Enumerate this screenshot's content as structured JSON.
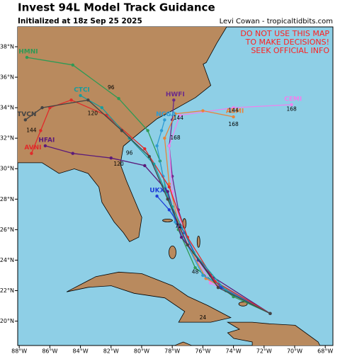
{
  "chart_data": {
    "type": "track-map",
    "title": "Invest 94L Model Track Guidance",
    "subtitle": "Initialized at 18z Sep 25 2025",
    "credit": "Levi Cowan - tropicaltidbits.com",
    "warning": [
      "DO NOT USE THIS MAP",
      "TO MAKE DECISIONS!",
      "SEEK OFFICIAL INFO"
    ],
    "xlim": [
      -88.1,
      -67.5
    ],
    "ylim": [
      18.4,
      39.3
    ],
    "xticks": [
      {
        "value": -88,
        "label": "88°W"
      },
      {
        "value": -86,
        "label": "86°W"
      },
      {
        "value": -84,
        "label": "84°W"
      },
      {
        "value": -82,
        "label": "82°W"
      },
      {
        "value": -80,
        "label": "80°W"
      },
      {
        "value": -78,
        "label": "78°W"
      },
      {
        "value": -76,
        "label": "76°W"
      },
      {
        "value": -74,
        "label": "74°W"
      },
      {
        "value": -72,
        "label": "72°W"
      },
      {
        "value": -70,
        "label": "70°W"
      },
      {
        "value": -68,
        "label": "68°W"
      }
    ],
    "yticks": [
      {
        "value": 20,
        "label": "20°N"
      },
      {
        "value": 22,
        "label": "22°N"
      },
      {
        "value": 24,
        "label": "24°N"
      },
      {
        "value": 26,
        "label": "26°N"
      },
      {
        "value": 28,
        "label": "28°N"
      },
      {
        "value": 30,
        "label": "30°N"
      },
      {
        "value": 32,
        "label": "32°N"
      },
      {
        "value": 34,
        "label": "34°N"
      },
      {
        "value": 36,
        "label": "36°N"
      },
      {
        "value": 38,
        "label": "38°N"
      }
    ],
    "tracks": [
      {
        "name": "HMNI",
        "color": "#2e9a55",
        "lon": [
          -71.6,
          -74,
          -76.5,
          -77.6,
          -78.4,
          -78.8,
          -79.6,
          -81.5,
          -84.5,
          -87.5
        ],
        "lat": [
          20.5,
          21.6,
          23.5,
          26,
          28.5,
          30.5,
          32.5,
          34.6,
          36.8,
          37.3
        ]
      },
      {
        "name": "HWFI",
        "color": "#6b2a8a",
        "lon": [
          -71.6,
          -75,
          -76.8,
          -77.6,
          -78,
          -78.2,
          -78,
          -77.9
        ],
        "lat": [
          20.5,
          22.3,
          24.8,
          27.3,
          29.5,
          31.5,
          33.2,
          34.5
        ]
      },
      {
        "name": "CEMI",
        "color": "#ee82ee",
        "lon": [
          -71.6,
          -75.5,
          -77.2,
          -78,
          -78.2,
          -77.5,
          -74,
          -70.2
        ],
        "lat": [
          20.5,
          22.5,
          25.5,
          28.5,
          31.5,
          33.5,
          34,
          34.2
        ]
      },
      {
        "name": "AEMI",
        "color": "#e8843a",
        "lon": [
          -71.6,
          -75.8,
          -77.5,
          -78.2,
          -78.5,
          -77.8,
          -76,
          -74
        ],
        "lat": [
          20.5,
          22.8,
          26,
          29,
          32,
          33.6,
          33.8,
          33.4
        ]
      },
      {
        "name": "NCGA",
        "color": "#2f9bd3",
        "lon": [
          -71.6,
          -76,
          -77.8,
          -78.6,
          -79,
          -78.7,
          -78.5
        ],
        "lat": [
          20.5,
          23,
          26.5,
          29.5,
          31.5,
          32.5,
          33.2
        ]
      },
      {
        "name": "UKXI",
        "color": "#1f3fd8",
        "lon": [
          -71.6,
          -74.8,
          -76.3,
          -77.2,
          -78.2,
          -79
        ],
        "lat": [
          20.5,
          22.2,
          24,
          25.8,
          27.3,
          28.2
        ]
      },
      {
        "name": "HFAI",
        "color": "#5b1a7a",
        "lon": [
          -71.6,
          -75.5,
          -77.4,
          -78.3,
          -79.8,
          -82,
          -84.5,
          -86.3
        ],
        "lat": [
          20.5,
          23,
          25.5,
          28.5,
          30.2,
          30.7,
          31,
          31.5
        ]
      },
      {
        "name": "AVNI",
        "color": "#e02a2a",
        "lon": [
          -71.6,
          -75.2,
          -77,
          -78.2,
          -79.8,
          -82.3,
          -84.6,
          -86,
          -86.6,
          -87.2
        ],
        "lat": [
          20.5,
          22.6,
          25.5,
          28.8,
          31.3,
          33.5,
          34.5,
          34,
          32.5,
          31
        ]
      },
      {
        "name": "CTCI",
        "color": "#1a9c9c",
        "lon": [
          -71.6,
          -74.5,
          -76.6,
          -78,
          -79.2,
          -80.8,
          -82.6,
          -84
        ],
        "lat": [
          20.5,
          22,
          24.5,
          27.5,
          30.3,
          32,
          34,
          34.8
        ]
      },
      {
        "name": "TVCN",
        "color": "#444444",
        "lon": [
          -71.6,
          -75,
          -77,
          -78.3,
          -79.5,
          -81.3,
          -83.5,
          -86.5,
          -87.6
        ],
        "lat": [
          20.5,
          22.2,
          25,
          28,
          30.8,
          32.5,
          34.5,
          34,
          33.2
        ]
      }
    ],
    "hour_labels": [
      {
        "text": "24",
        "lon": -76,
        "lat": 20.2
      },
      {
        "text": "48",
        "lon": -76.5,
        "lat": 23.2
      },
      {
        "text": "72",
        "lon": -77.6,
        "lat": 26.2
      },
      {
        "text": "96",
        "lon": -80.8,
        "lat": 31
      },
      {
        "text": "96",
        "lon": -82,
        "lat": 35.3
      },
      {
        "text": "120",
        "lon": -83.2,
        "lat": 33.6
      },
      {
        "text": "120",
        "lon": -81.5,
        "lat": 30.3
      },
      {
        "text": "144",
        "lon": -87.2,
        "lat": 32.5
      },
      {
        "text": "144",
        "lon": -77.6,
        "lat": 33.3
      },
      {
        "text": "144",
        "lon": -74,
        "lat": 33.8
      },
      {
        "text": "168",
        "lon": -74,
        "lat": 32.9
      },
      {
        "text": "168",
        "lon": -70.2,
        "lat": 33.9
      },
      {
        "text": "168",
        "lon": -77.8,
        "lat": 32
      }
    ]
  }
}
